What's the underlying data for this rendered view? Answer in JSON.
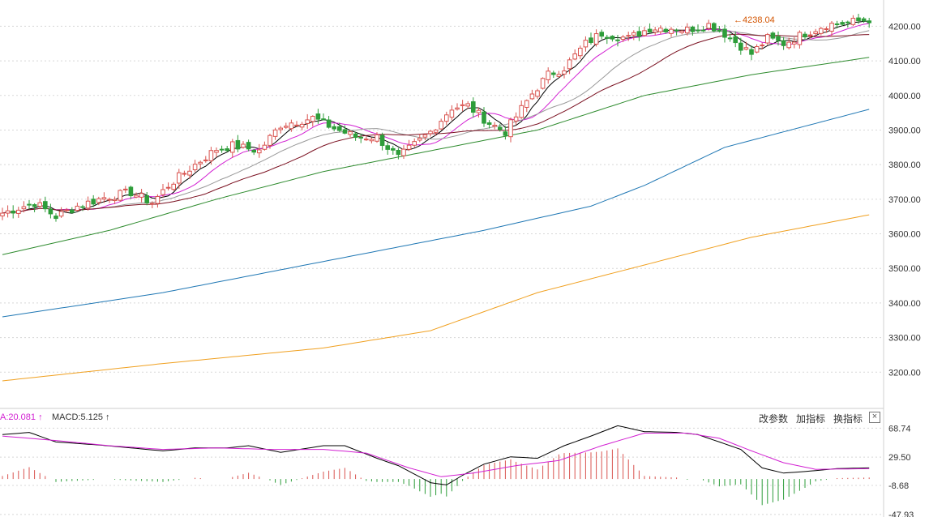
{
  "chart_data": [
    {
      "type": "candlestick",
      "title": "",
      "ylim": [
        3120,
        4260
      ],
      "yticks": [
        3200,
        3300,
        3400,
        3500,
        3600,
        3700,
        3800,
        3900,
        4000,
        4100,
        4200
      ],
      "ytick_labels": [
        "3200.00",
        "3300.00",
        "3400.00",
        "3500.00",
        "3600.00",
        "3700.00",
        "3800.00",
        "3900.00",
        "4000.00",
        "4100.00",
        "4200.00"
      ],
      "grid": true,
      "annotation": {
        "text": "4238.04",
        "value": 4238.04
      },
      "close_anchors": [
        [
          0,
          3660
        ],
        [
          6,
          3690
        ],
        [
          10,
          3650
        ],
        [
          14,
          3680
        ],
        [
          19,
          3705
        ],
        [
          24,
          3720
        ],
        [
          28,
          3690
        ],
        [
          31,
          3740
        ],
        [
          36,
          3800
        ],
        [
          40,
          3845
        ],
        [
          43,
          3855
        ],
        [
          48,
          3840
        ],
        [
          52,
          3915
        ],
        [
          55,
          3925
        ],
        [
          58,
          3935
        ],
        [
          62,
          3905
        ],
        [
          66,
          3880
        ],
        [
          70,
          3880
        ],
        [
          74,
          3820
        ],
        [
          76,
          3845
        ],
        [
          80,
          3895
        ],
        [
          84,
          3965
        ],
        [
          87,
          3970
        ],
        [
          91,
          3920
        ],
        [
          94,
          3895
        ],
        [
          99,
          4005
        ],
        [
          102,
          4060
        ],
        [
          105,
          4080
        ],
        [
          109,
          4150
        ],
        [
          112,
          4180
        ],
        [
          117,
          4165
        ],
        [
          121,
          4195
        ],
        [
          125,
          4195
        ],
        [
          128,
          4190
        ],
        [
          132,
          4205
        ],
        [
          134,
          4190
        ],
        [
          137,
          4155
        ],
        [
          140,
          4120
        ],
        [
          143,
          4165
        ],
        [
          146,
          4150
        ],
        [
          150,
          4180
        ],
        [
          154,
          4205
        ],
        [
          158,
          4210
        ],
        [
          162,
          4220
        ]
      ],
      "series": [
        {
          "name": "",
          "color": "#000000",
          "window": 5
        },
        {
          "name": "",
          "color": "#d21fd2",
          "window": 10
        },
        {
          "name": "",
          "color": "#999999",
          "window": 20
        },
        {
          "name": "",
          "color": "#7a1020",
          "window": 30
        },
        {
          "name": "",
          "color": "#2e8b2e",
          "points": [
            [
              0,
              3540
            ],
            [
              20,
              3610
            ],
            [
              40,
              3700
            ],
            [
              60,
              3780
            ],
            [
              80,
              3840
            ],
            [
              100,
              3900
            ],
            [
              120,
              4000
            ],
            [
              140,
              4060
            ],
            [
              162,
              4110
            ]
          ]
        },
        {
          "name": "",
          "color": "#1f77b4",
          "points": [
            [
              0,
              3360
            ],
            [
              30,
              3430
            ],
            [
              60,
              3520
            ],
            [
              90,
              3610
            ],
            [
              110,
              3680
            ],
            [
              120,
              3740
            ],
            [
              135,
              3850
            ],
            [
              162,
              3960
            ]
          ]
        },
        {
          "name": "",
          "color": "#f0a020",
          "points": [
            [
              0,
              3175
            ],
            [
              30,
              3225
            ],
            [
              60,
              3270
            ],
            [
              80,
              3320
            ],
            [
              100,
              3430
            ],
            [
              120,
              3510
            ],
            [
              140,
              3590
            ],
            [
              162,
              3655
            ]
          ]
        }
      ]
    },
    {
      "type": "macd",
      "ylim": [
        -50,
        72
      ],
      "yticks": [
        68.74,
        29.5,
        -8.68,
        -47.93
      ],
      "ytick_labels": [
        "68.74",
        "29.50",
        "-8.68",
        "-47.93"
      ],
      "legend": [
        {
          "text": "A:20.081 ↑",
          "color": "#d21fd2"
        },
        {
          "text": "MACD:5.125 ↑",
          "color": "#333333"
        }
      ],
      "dif_anchors": [
        [
          0,
          60
        ],
        [
          5,
          63
        ],
        [
          10,
          50
        ],
        [
          18,
          46
        ],
        [
          24,
          42
        ],
        [
          30,
          38
        ],
        [
          36,
          42
        ],
        [
          42,
          42
        ],
        [
          46,
          45
        ],
        [
          52,
          36
        ],
        [
          60,
          45
        ],
        [
          64,
          45
        ],
        [
          70,
          28
        ],
        [
          74,
          18
        ],
        [
          80,
          -5
        ],
        [
          83,
          -8
        ],
        [
          86,
          5
        ],
        [
          90,
          20
        ],
        [
          95,
          30
        ],
        [
          100,
          28
        ],
        [
          105,
          45
        ],
        [
          110,
          58
        ],
        [
          115,
          72
        ],
        [
          120,
          64
        ],
        [
          126,
          63
        ],
        [
          130,
          60
        ],
        [
          134,
          50
        ],
        [
          138,
          40
        ],
        [
          142,
          15
        ],
        [
          146,
          8
        ],
        [
          150,
          10
        ],
        [
          156,
          14
        ],
        [
          162,
          15
        ]
      ],
      "dea_anchors": [
        [
          0,
          58
        ],
        [
          10,
          52
        ],
        [
          20,
          45
        ],
        [
          30,
          40
        ],
        [
          40,
          42
        ],
        [
          50,
          40
        ],
        [
          60,
          40
        ],
        [
          68,
          35
        ],
        [
          76,
          15
        ],
        [
          82,
          3
        ],
        [
          88,
          8
        ],
        [
          96,
          18
        ],
        [
          104,
          25
        ],
        [
          112,
          45
        ],
        [
          120,
          62
        ],
        [
          128,
          62
        ],
        [
          134,
          55
        ],
        [
          140,
          38
        ],
        [
          146,
          22
        ],
        [
          152,
          13
        ],
        [
          162,
          14
        ]
      ]
    }
  ],
  "toolbar": {
    "params_label": "改参数",
    "add_indicator_label": "加指标",
    "switch_indicator_label": "换指标",
    "close_label": "×"
  }
}
